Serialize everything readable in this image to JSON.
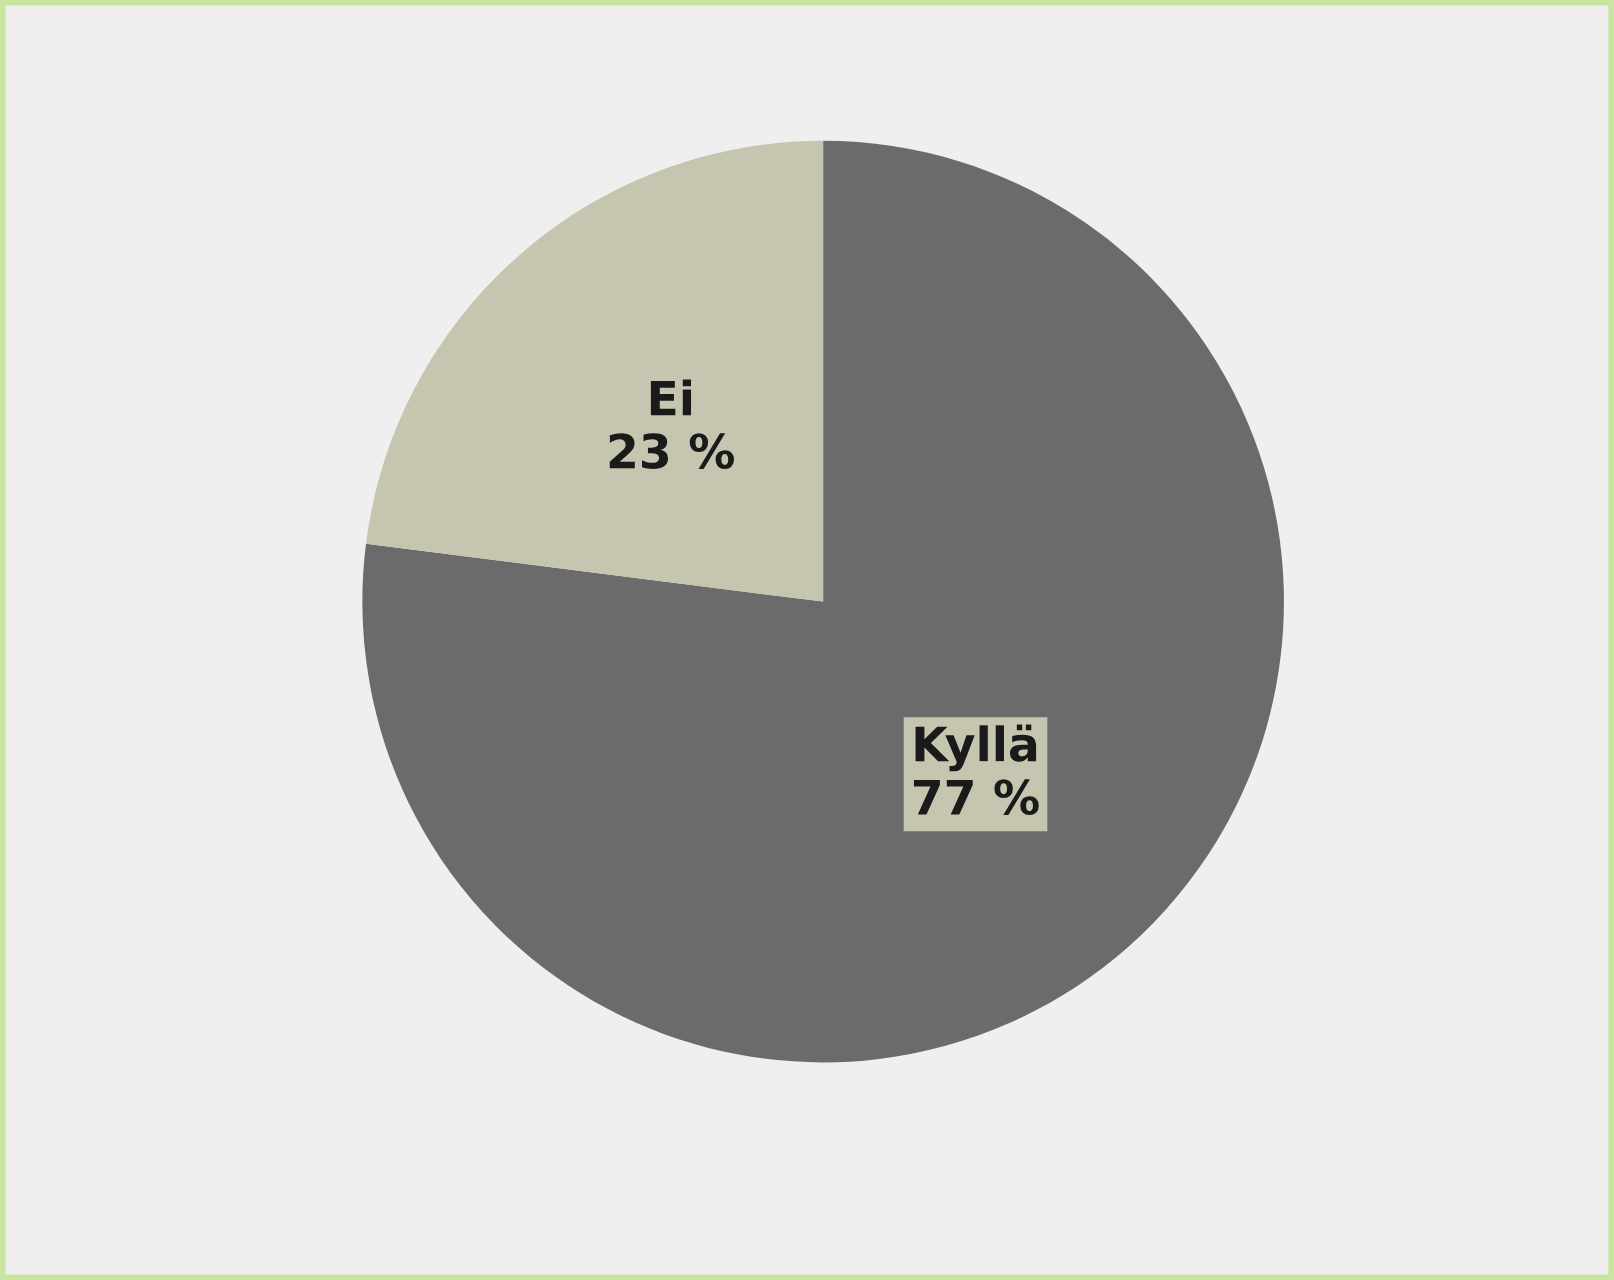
{
  "chart_data": {
    "type": "pie",
    "categories": [
      "Kyllä",
      "Ei"
    ],
    "values": [
      77,
      23
    ],
    "colors": [
      "#6b6b6b",
      "#c6c6b0"
    ],
    "value_labels": [
      "77 %",
      "23 %"
    ],
    "legend": false
  }
}
